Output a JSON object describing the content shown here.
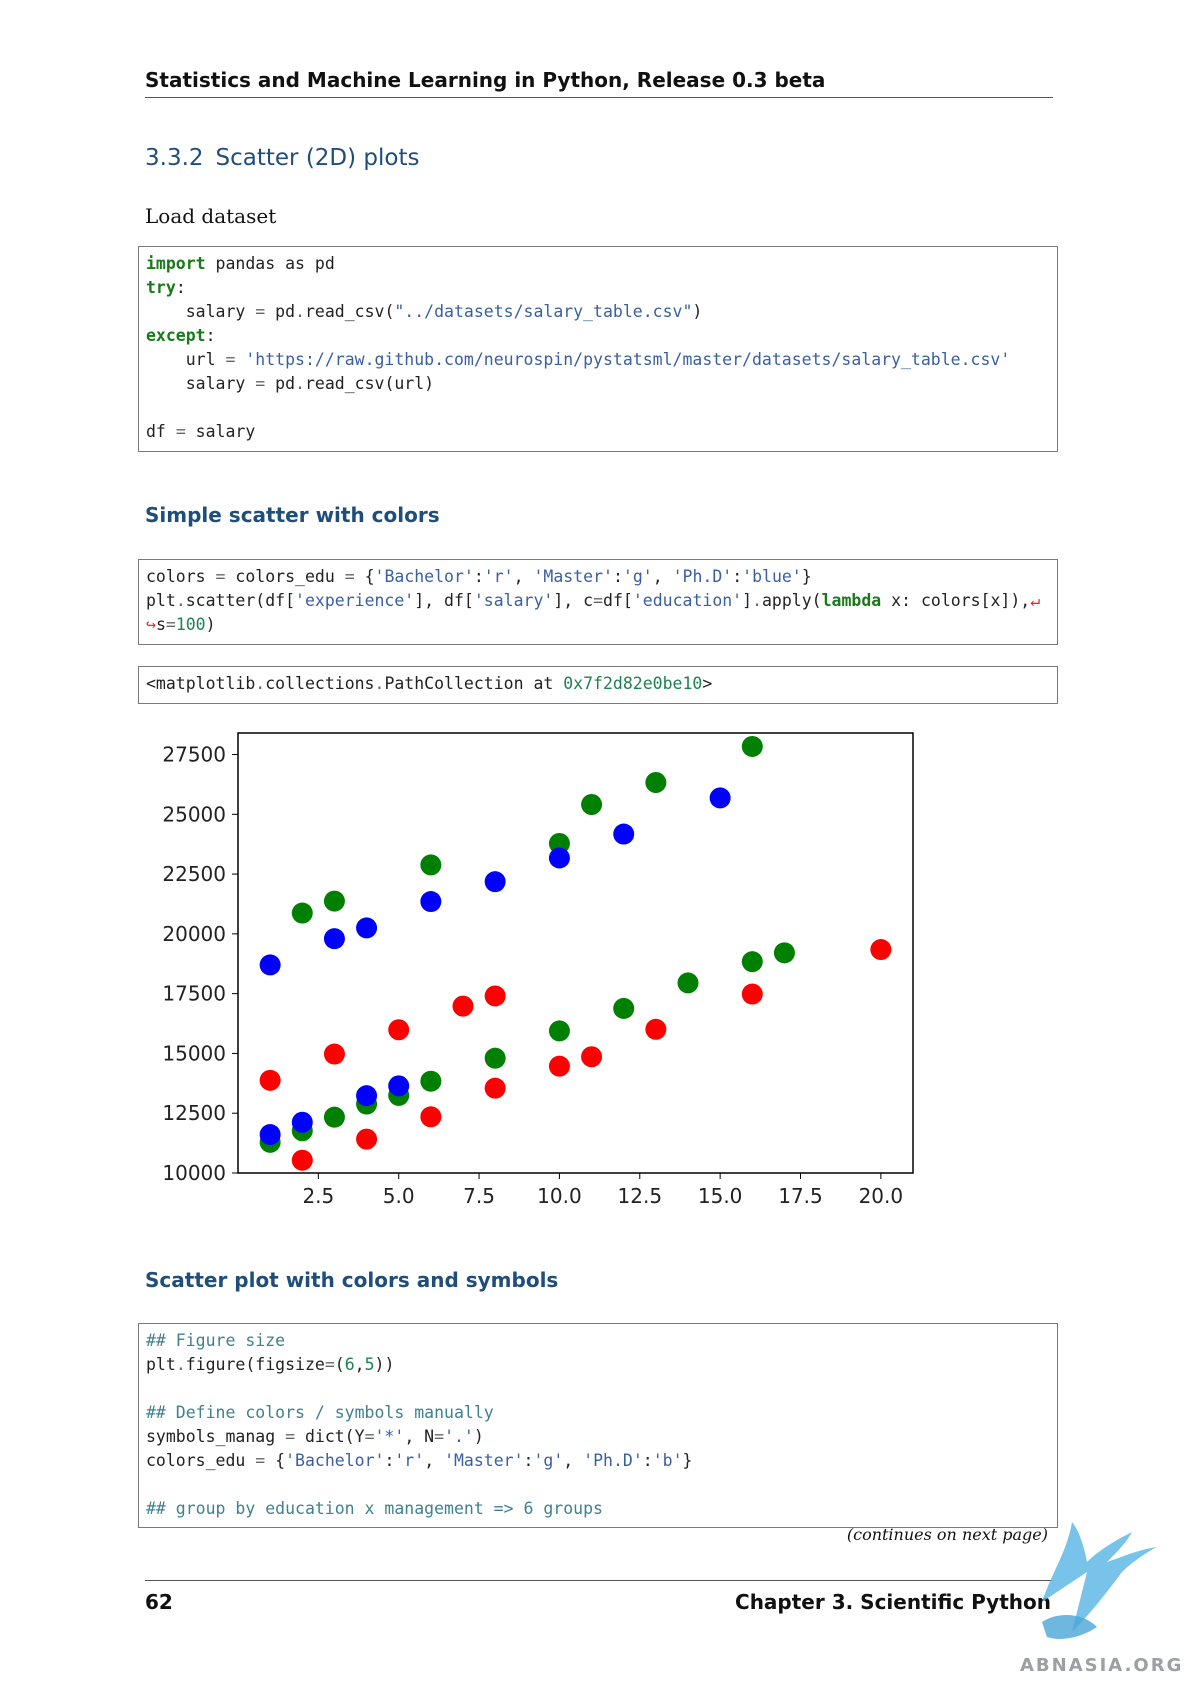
{
  "header": {
    "running_title": "Statistics and Machine Learning in Python, Release 0.3 beta"
  },
  "section": {
    "number": "3.3.2",
    "title": "Scatter (2D) plots"
  },
  "intro_text": "Load dataset",
  "subsections": {
    "simple": "Simple scatter with colors",
    "symbols": "Scatter plot with colors and symbols"
  },
  "code_blocks": {
    "load": [
      "import pandas as pd",
      "try:",
      "    salary = pd.read_csv(\"../datasets/salary_table.csv\")",
      "except:",
      "    url = 'https://raw.github.com/neurospin/pystatsml/master/datasets/salary_table.csv'",
      "    salary = pd.read_csv(url)",
      "",
      "df = salary"
    ],
    "scatter": [
      "colors = colors_edu = {'Bachelor':'r', 'Master':'g', 'Ph.D':'blue'}",
      "plt.scatter(df['experience'], df['salary'], c=df['education'].apply(lambda x: colors[x]),↵",
      "↪s=100)"
    ],
    "output": "<matplotlib.collections.PathCollection at 0x7f2d82e0be10>",
    "symbols": [
      "## Figure size",
      "plt.figure(figsize=(6,5))",
      "",
      "## Define colors / symbols manually",
      "symbols_manag = dict(Y='*', N='.')",
      "colors_edu = {'Bachelor':'r', 'Master':'g', 'Ph.D':'b'}",
      "",
      "## group by education x management => 6 groups"
    ]
  },
  "continues_note": "(continues on next page)",
  "footer": {
    "page_number": "62",
    "chapter": "Chapter 3.  Scientific Python"
  },
  "watermark": {
    "text": "ABNASIA.ORG"
  },
  "chart_data": {
    "type": "scatter",
    "xlim": [
      0,
      21.0
    ],
    "ylim": [
      10000,
      28400
    ],
    "x_ticks": [
      "2.5",
      "5.0",
      "7.5",
      "10.0",
      "12.5",
      "15.0",
      "17.5",
      "20.0"
    ],
    "x_tick_values": [
      2.5,
      5.0,
      7.5,
      10.0,
      12.5,
      15.0,
      17.5,
      20.0
    ],
    "y_ticks": [
      "10000",
      "12500",
      "15000",
      "17500",
      "20000",
      "22500",
      "25000",
      "27500"
    ],
    "y_tick_values": [
      10000,
      12500,
      15000,
      17500,
      20000,
      22500,
      25000,
      27500
    ],
    "grid": false,
    "colors": {
      "red": "#ff0000",
      "green": "#008000",
      "blue": "#0000ff"
    },
    "series": [
      {
        "color": "#ff0000",
        "points": [
          [
            1,
            13876
          ],
          [
            2,
            10535
          ],
          [
            3,
            14975
          ],
          [
            4,
            11417
          ],
          [
            5,
            15990
          ],
          [
            6,
            12351
          ],
          [
            7,
            16978
          ],
          [
            8,
            13548
          ],
          [
            8,
            17404
          ],
          [
            10,
            14467
          ],
          [
            11,
            14861
          ],
          [
            13,
            16010
          ],
          [
            16,
            17483
          ],
          [
            20,
            19345
          ]
        ]
      },
      {
        "color": "#008000",
        "points": [
          [
            1,
            11283
          ],
          [
            2,
            11767
          ],
          [
            2,
            20872
          ],
          [
            3,
            12336
          ],
          [
            3,
            21371
          ],
          [
            4,
            12884
          ],
          [
            5,
            13245
          ],
          [
            6,
            13839
          ],
          [
            6,
            22884
          ],
          [
            8,
            14803
          ],
          [
            10,
            15942
          ],
          [
            10,
            23780
          ],
          [
            11,
            25410
          ],
          [
            12,
            16882
          ],
          [
            13,
            26330
          ],
          [
            14,
            17949
          ],
          [
            16,
            18838
          ],
          [
            16,
            27837
          ],
          [
            17,
            19207
          ]
        ]
      },
      {
        "color": "#0000ff",
        "points": [
          [
            1,
            11608
          ],
          [
            1,
            18701
          ],
          [
            2,
            12122
          ],
          [
            3,
            19800
          ],
          [
            4,
            13234
          ],
          [
            4,
            20249
          ],
          [
            5,
            13643
          ],
          [
            6,
            21352
          ],
          [
            8,
            22184
          ],
          [
            10,
            23174
          ],
          [
            12,
            24174
          ],
          [
            15,
            25685
          ]
        ]
      }
    ]
  }
}
